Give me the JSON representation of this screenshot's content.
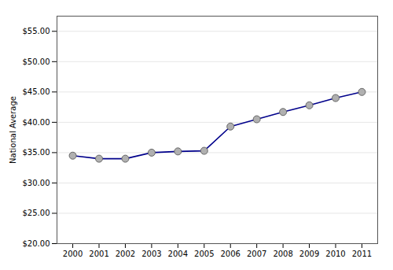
{
  "chart_data": {
    "type": "line",
    "ylabel": "National Average",
    "x": [
      2000,
      2001,
      2002,
      2003,
      2004,
      2005,
      2006,
      2007,
      2008,
      2009,
      2010,
      2011
    ],
    "values": [
      34.5,
      34.0,
      34.0,
      35.0,
      35.2,
      35.3,
      39.3,
      40.5,
      41.7,
      42.8,
      44.0,
      45.0
    ],
    "color": "#00008B",
    "marker": "circle",
    "xlim": [
      1999.4,
      2011.6
    ],
    "xticks": [
      2000,
      2001,
      2002,
      2003,
      2004,
      2005,
      2006,
      2007,
      2008,
      2009,
      2010,
      2011
    ],
    "ylim": [
      20,
      57.5
    ],
    "yticks": [
      {
        "value": 20,
        "label": "$20.00"
      },
      {
        "value": 25,
        "label": "$25.00"
      },
      {
        "value": 30,
        "label": "$30.00"
      },
      {
        "value": 35,
        "label": "$35.00"
      },
      {
        "value": 40,
        "label": "$40.00"
      },
      {
        "value": 45,
        "label": "$45.00"
      },
      {
        "value": 50,
        "label": "$50.00"
      },
      {
        "value": 55,
        "label": "$55.00"
      }
    ],
    "grid": true
  }
}
